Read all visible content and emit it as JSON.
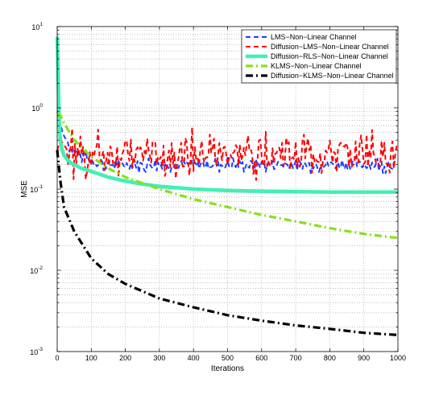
{
  "chart_data": {
    "type": "line",
    "title": "",
    "xlabel": "Iterations",
    "ylabel": "MSE",
    "xlim": [
      0,
      1000
    ],
    "ylim": [
      0.001,
      10
    ],
    "yscale": "log",
    "grid": true,
    "legend_position": "top-right",
    "x_ticks": [
      0,
      100,
      200,
      300,
      400,
      500,
      600,
      700,
      800,
      900,
      1000
    ],
    "y_ticks": [
      {
        "base": "10",
        "exp": "-3",
        "value": 0.001
      },
      {
        "base": "10",
        "exp": "-2",
        "value": 0.01
      },
      {
        "base": "10",
        "exp": "-1",
        "value": 0.1
      },
      {
        "base": "10",
        "exp": "0",
        "value": 1
      },
      {
        "base": "10",
        "exp": "1",
        "value": 10
      }
    ],
    "series": [
      {
        "name": "LMS−Non−Linear Channel",
        "color": "#1f3fff",
        "style": "dashed",
        "x": [
          0,
          5,
          10,
          20,
          30,
          40,
          50,
          60,
          80,
          100,
          120,
          150,
          200,
          300,
          400,
          500,
          600,
          700,
          800,
          900,
          1000
        ],
        "y": [
          0.9,
          0.8,
          0.6,
          0.45,
          0.38,
          0.33,
          0.3,
          0.27,
          0.24,
          0.22,
          0.21,
          0.2,
          0.2,
          0.2,
          0.2,
          0.2,
          0.2,
          0.2,
          0.2,
          0.2,
          0.2
        ]
      },
      {
        "name": "Diffusion−LMS−Non−Linear Channel",
        "color": "#ff0000",
        "style": "dashed",
        "x": [
          0,
          5,
          10,
          20,
          30,
          40,
          50,
          60,
          80,
          100,
          120,
          150,
          200,
          300,
          400,
          500,
          600,
          700,
          800,
          900,
          1000
        ],
        "y": [
          0.3,
          0.35,
          0.4,
          0.35,
          0.3,
          0.28,
          0.27,
          0.27,
          0.27,
          0.27,
          0.27,
          0.27,
          0.27,
          0.27,
          0.27,
          0.27,
          0.27,
          0.27,
          0.27,
          0.27,
          0.27
        ]
      },
      {
        "name": "Diffusion−RLS−Non−Linear Channel",
        "color": "#40f0b4",
        "style": "solid",
        "x": [
          0,
          2,
          4,
          6,
          8,
          10,
          15,
          20,
          30,
          40,
          50,
          70,
          100,
          150,
          200,
          250,
          300,
          400,
          500,
          600,
          700,
          800,
          900,
          1000
        ],
        "y": [
          7.5,
          4.0,
          1.5,
          0.7,
          0.45,
          0.37,
          0.3,
          0.26,
          0.23,
          0.21,
          0.2,
          0.18,
          0.165,
          0.14,
          0.125,
          0.115,
          0.108,
          0.1,
          0.096,
          0.094,
          0.093,
          0.092,
          0.092,
          0.092
        ]
      },
      {
        "name": "KLMS−Non−Linear Channel",
        "color": "#88e01a",
        "style": "dashdot",
        "x": [
          0,
          10,
          20,
          50,
          100,
          150,
          200,
          300,
          400,
          500,
          600,
          700,
          800,
          900,
          1000
        ],
        "y": [
          0.85,
          0.8,
          0.65,
          0.4,
          0.25,
          0.18,
          0.14,
          0.1,
          0.075,
          0.06,
          0.048,
          0.04,
          0.033,
          0.028,
          0.025
        ]
      },
      {
        "name": "Diffusion−KLMS−Non−Linear Channel",
        "color": "#000000",
        "style": "dashdot",
        "x": [
          0,
          10,
          20,
          50,
          100,
          150,
          200,
          300,
          400,
          500,
          600,
          700,
          800,
          900,
          1000
        ],
        "y": [
          0.3,
          0.12,
          0.06,
          0.03,
          0.014,
          0.009,
          0.0068,
          0.0045,
          0.0035,
          0.0028,
          0.0024,
          0.0021,
          0.0019,
          0.0017,
          0.0016
        ]
      }
    ]
  }
}
